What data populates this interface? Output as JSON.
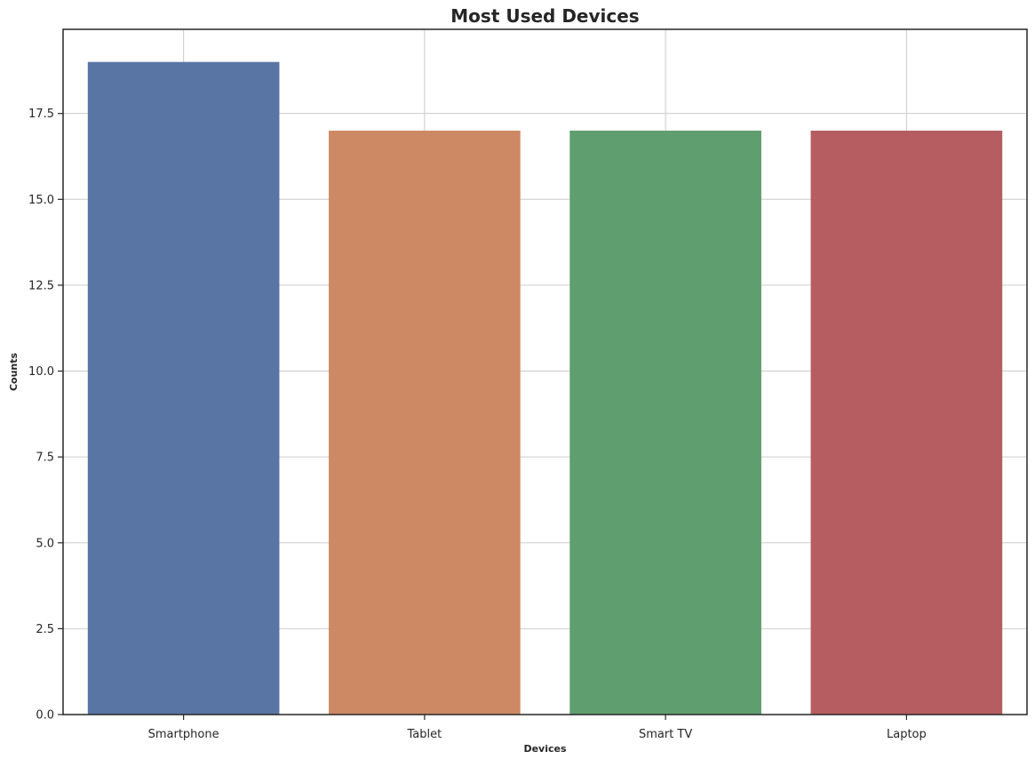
{
  "chart_data": {
    "type": "bar",
    "title": "Most Used Devices",
    "xlabel": "Devices",
    "ylabel": "Counts",
    "categories": [
      "Smartphone",
      "Tablet",
      "Smart TV",
      "Laptop"
    ],
    "values": [
      19,
      17,
      17,
      17
    ],
    "colors": [
      "#5975a4",
      "#cc8963",
      "#5f9e6e",
      "#b55d60"
    ],
    "ylim": [
      0,
      19.95
    ],
    "yticks": [
      0.0,
      2.5,
      5.0,
      7.5,
      10.0,
      12.5,
      15.0,
      17.5
    ],
    "ytick_labels": [
      "0.0",
      "2.5",
      "5.0",
      "7.5",
      "10.0",
      "12.5",
      "15.0",
      "17.5"
    ],
    "grid": true,
    "legend": "none"
  }
}
